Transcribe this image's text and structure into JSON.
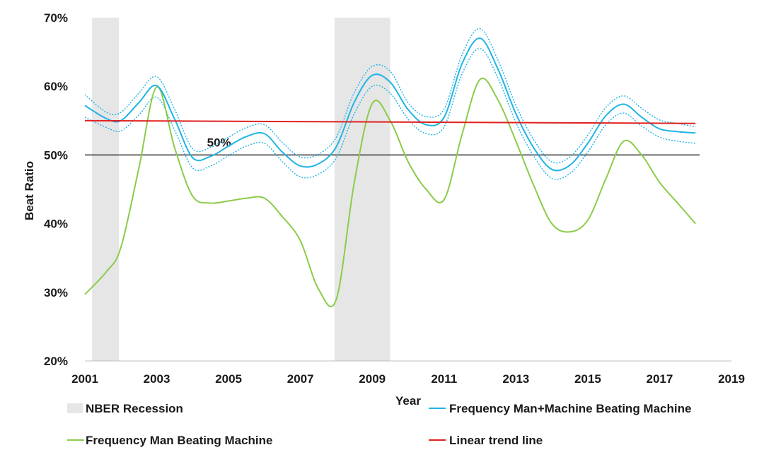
{
  "chart_data": {
    "type": "line",
    "title": "",
    "xlabel": "Year",
    "ylabel": "Beat Ratio",
    "xlim": [
      2001,
      2019
    ],
    "ylim": [
      20,
      70
    ],
    "x_ticks": [
      2001,
      2003,
      2005,
      2007,
      2009,
      2011,
      2013,
      2015,
      2017,
      2019
    ],
    "y_ticks": [
      20,
      30,
      40,
      50,
      60,
      70
    ],
    "y_tick_labels": [
      "20%",
      "30%",
      "40%",
      "50%",
      "60%",
      "70%"
    ],
    "x_tick_labels": [
      "2001",
      "2003",
      "2005",
      "2007",
      "2009",
      "2011",
      "2013",
      "2015",
      "2017",
      "2019"
    ],
    "grid": false,
    "reference_line": {
      "value": 50,
      "label": "50%",
      "color": "#333333"
    },
    "recessions": [
      {
        "start": 2001.2,
        "end": 2001.95
      },
      {
        "start": 2007.95,
        "end": 2009.5
      }
    ],
    "series": [
      {
        "name": "Frequency Man+Machine Beating Machine",
        "color": "#1FB4E6",
        "x": [
          2001,
          2001.6,
          2002,
          2002.5,
          2003,
          2003.5,
          2004,
          2004.5,
          2005,
          2005.5,
          2006,
          2006.5,
          2007,
          2007.5,
          2008,
          2008.5,
          2009,
          2009.5,
          2010,
          2010.5,
          2011,
          2011.5,
          2012,
          2012.5,
          2013,
          2013.5,
          2014,
          2014.5,
          2015,
          2015.5,
          2016,
          2016.5,
          2017,
          2017.5,
          2018
        ],
        "values": [
          57.2,
          55.3,
          55.0,
          57.6,
          60.1,
          55.2,
          49.6,
          49.8,
          51.3,
          52.7,
          53.1,
          50.4,
          48.4,
          48.7,
          51.2,
          57.7,
          61.6,
          60.6,
          56.6,
          54.4,
          55.5,
          63.3,
          67.0,
          62.5,
          56.0,
          51.0,
          47.9,
          48.5,
          51.7,
          55.7,
          57.4,
          55.5,
          53.8,
          53.4,
          53.2
        ],
        "upper": [
          58.8,
          56.2,
          56.2,
          59.0,
          61.4,
          56.6,
          50.9,
          51.1,
          52.6,
          54.0,
          54.4,
          51.8,
          49.7,
          50.1,
          52.6,
          59.1,
          62.9,
          62.2,
          57.6,
          55.6,
          56.7,
          64.6,
          68.4,
          63.8,
          57.2,
          52.2,
          49.0,
          49.7,
          52.9,
          56.9,
          58.6,
          56.8,
          55.1,
          54.6,
          54.1
        ],
        "lower": [
          55.5,
          54.0,
          53.5,
          55.8,
          58.4,
          53.6,
          48.1,
          48.4,
          49.9,
          51.3,
          51.7,
          49.0,
          46.8,
          47.2,
          49.6,
          56.0,
          60.0,
          59.0,
          55.2,
          53.1,
          54.1,
          61.8,
          65.5,
          61.2,
          54.7,
          49.8,
          46.6,
          47.3,
          50.4,
          54.4,
          56.1,
          54.2,
          52.6,
          52.0,
          51.7
        ]
      },
      {
        "name": "Frequency Man Beating Machine",
        "color": "#8CCB4A",
        "x": [
          2001,
          2001.6,
          2002,
          2002.5,
          2003,
          2003.5,
          2004,
          2004.5,
          2005,
          2005.5,
          2006,
          2006.5,
          2007,
          2007.5,
          2008,
          2008.5,
          2009,
          2009.5,
          2010,
          2010.5,
          2011,
          2011.5,
          2012,
          2012.5,
          2013,
          2013.5,
          2014,
          2014.5,
          2015,
          2015.5,
          2016,
          2016.5,
          2017,
          2017.5,
          2018
        ],
        "values": [
          29.7,
          33.0,
          36.5,
          48.0,
          59.9,
          51.0,
          44.0,
          43.0,
          43.3,
          43.7,
          43.7,
          41.0,
          37.5,
          30.5,
          29.0,
          46.0,
          57.5,
          55.0,
          49.0,
          45.0,
          43.5,
          53.0,
          61.0,
          58.0,
          52.0,
          45.5,
          40.0,
          38.8,
          40.5,
          46.5,
          52.0,
          50.0,
          46.0,
          43.0,
          40.0
        ]
      },
      {
        "name": "Linear trend line",
        "color": "#E02020",
        "x": [
          2001,
          2018
        ],
        "values": [
          55.0,
          54.6
        ]
      }
    ],
    "legend": {
      "position": "bottom",
      "entries": [
        {
          "label": "NBER Recession",
          "type": "area",
          "color": "#E6E6E6"
        },
        {
          "label": "Frequency Man+Machine Beating Machine",
          "type": "line",
          "color": "#1FB4E6"
        },
        {
          "label": "Frequency Man Beating Machine",
          "type": "line",
          "color": "#8CCB4A"
        },
        {
          "label": "Linear trend line",
          "type": "line",
          "color": "#E02020"
        }
      ]
    }
  }
}
